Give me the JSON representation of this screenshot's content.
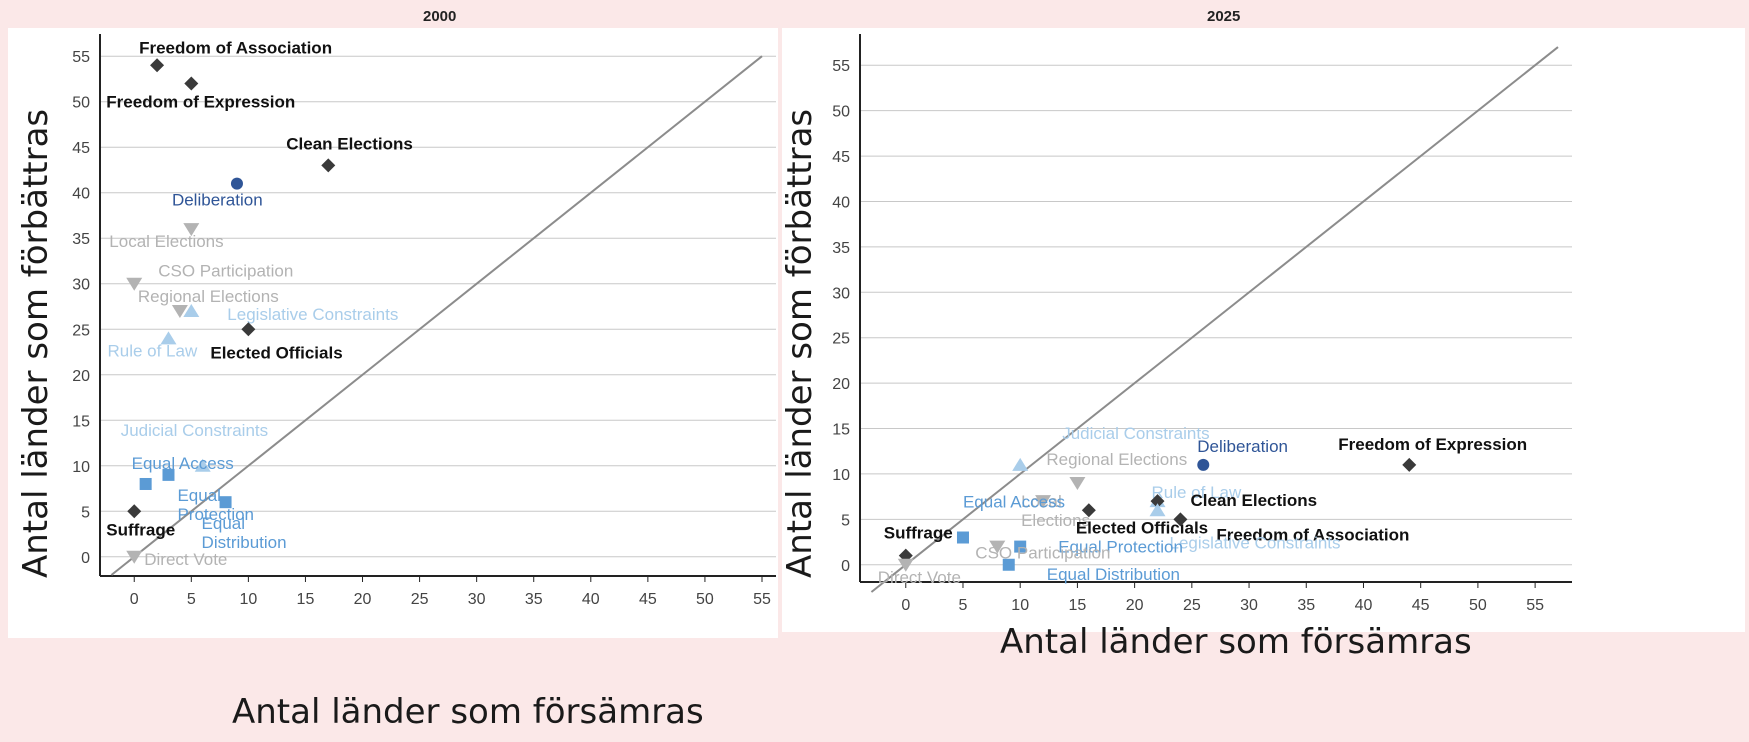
{
  "colors": {
    "background": "#fbe8e8",
    "dark": "#3a3a3a",
    "deep_blue": "#2f5597",
    "mid_blue": "#5b9bd5",
    "light_blue": "#a9cdea",
    "gray": "#b3b3b3",
    "grid": "#c8c8c8",
    "diagonal": "#8c8c8c"
  },
  "chart_data": [
    {
      "type": "scatter",
      "title": "2000",
      "xlabel": "Antal länder som försämras",
      "ylabel": "Antal länder som förbättras",
      "xlim": [
        -3,
        55
      ],
      "ylim": [
        -2,
        57
      ],
      "xticks": [
        0,
        5,
        10,
        15,
        20,
        25,
        30,
        35,
        40,
        45,
        50,
        55
      ],
      "yticks": [
        0,
        5,
        10,
        15,
        20,
        25,
        30,
        35,
        40,
        45,
        50,
        55
      ],
      "grid": "horizontal",
      "diagonal": true,
      "points": [
        {
          "label": "Freedom of Association",
          "x": 2,
          "y": 54,
          "marker": "diamond",
          "color": "dark"
        },
        {
          "label": "Freedom of Expression",
          "x": 5,
          "y": 52,
          "marker": "diamond",
          "color": "dark"
        },
        {
          "label": "Clean Elections",
          "x": 17,
          "y": 43,
          "marker": "diamond",
          "color": "dark"
        },
        {
          "label": "Deliberation",
          "x": 9,
          "y": 41,
          "marker": "circle",
          "color": "deep_blue"
        },
        {
          "label": "Local Elections",
          "x": 5,
          "y": 36,
          "marker": "tri_down",
          "color": "gray"
        },
        {
          "label": "CSO Participation",
          "x": 0,
          "y": 30,
          "marker": "tri_down",
          "color": "gray"
        },
        {
          "label": "Regional Elections",
          "x": 4,
          "y": 27,
          "marker": "tri_down",
          "color": "gray"
        },
        {
          "label": "Legislative Constraints",
          "x": 5,
          "y": 27,
          "marker": "tri_up",
          "color": "light_blue"
        },
        {
          "label": "Elected Officials",
          "x": 10,
          "y": 25,
          "marker": "diamond",
          "color": "dark"
        },
        {
          "label": "Rule of Law",
          "x": 3,
          "y": 24,
          "marker": "tri_up",
          "color": "light_blue"
        },
        {
          "label": "Judicial Constraints",
          "x": 6,
          "y": 10,
          "marker": "tri_up",
          "color": "light_blue"
        },
        {
          "label": "Equal Access",
          "x": 1,
          "y": 8,
          "marker": "square",
          "color": "mid_blue"
        },
        {
          "label": "Equal Protection",
          "x": 3,
          "y": 9,
          "marker": "square",
          "color": "mid_blue"
        },
        {
          "label": "Equal Distribution",
          "x": 8,
          "y": 6,
          "marker": "square",
          "color": "mid_blue"
        },
        {
          "label": "Suffrage",
          "x": 0,
          "y": 5,
          "marker": "diamond",
          "color": "dark"
        },
        {
          "label": "Direct Vote",
          "x": 0,
          "y": 0,
          "marker": "tri_down",
          "color": "gray"
        }
      ]
    },
    {
      "type": "scatter",
      "title": "2025",
      "xlabel": "Antal länder som försämras",
      "ylabel": "Antal länder som förbättras",
      "xlim": [
        -4,
        57
      ],
      "ylim": [
        -3,
        58
      ],
      "xticks": [
        0,
        5,
        10,
        15,
        20,
        25,
        30,
        35,
        40,
        45,
        50,
        55
      ],
      "yticks": [
        0,
        5,
        10,
        15,
        20,
        25,
        30,
        35,
        40,
        45,
        50,
        55
      ],
      "grid": "horizontal",
      "diagonal": true,
      "points": [
        {
          "label": "Freedom of Expression",
          "x": 44,
          "y": 11,
          "marker": "diamond",
          "color": "dark"
        },
        {
          "label": "Deliberation",
          "x": 26,
          "y": 11,
          "marker": "circle",
          "color": "deep_blue"
        },
        {
          "label": "Judicial Constraints",
          "x": 10,
          "y": 11,
          "marker": "tri_up",
          "color": "light_blue"
        },
        {
          "label": "Regional Elections",
          "x": 15,
          "y": 9,
          "marker": "tri_down",
          "color": "gray"
        },
        {
          "label": "Rule of Law",
          "x": 22,
          "y": 7,
          "marker": "tri_up",
          "color": "light_blue"
        },
        {
          "label": "Clean Elections",
          "x": 22,
          "y": 7,
          "marker": "diamond",
          "color": "dark"
        },
        {
          "label": "Local Elections",
          "x": 12,
          "y": 7,
          "marker": "tri_down",
          "color": "gray"
        },
        {
          "label": "Elected Officials",
          "x": 16,
          "y": 6,
          "marker": "diamond",
          "color": "dark"
        },
        {
          "label": "Freedom of Association",
          "x": 24,
          "y": 5,
          "marker": "diamond",
          "color": "dark"
        },
        {
          "label": "Equal Access",
          "x": 5,
          "y": 3,
          "marker": "square",
          "color": "mid_blue"
        },
        {
          "label": "Legislative Constraints",
          "x": 22,
          "y": 6,
          "marker": "tri_up",
          "color": "light_blue"
        },
        {
          "label": "Equal Protection",
          "x": 10,
          "y": 2,
          "marker": "square",
          "color": "mid_blue"
        },
        {
          "label": "CSO Participation",
          "x": 8,
          "y": 2,
          "marker": "tri_down",
          "color": "gray"
        },
        {
          "label": "Equal Distribution",
          "x": 9,
          "y": 0,
          "marker": "square",
          "color": "mid_blue"
        },
        {
          "label": "Suffrage",
          "x": 0,
          "y": 1,
          "marker": "diamond",
          "color": "dark"
        },
        {
          "label": "Direct Vote",
          "x": 0,
          "y": 0,
          "marker": "tri_down",
          "color": "gray"
        }
      ]
    }
  ]
}
